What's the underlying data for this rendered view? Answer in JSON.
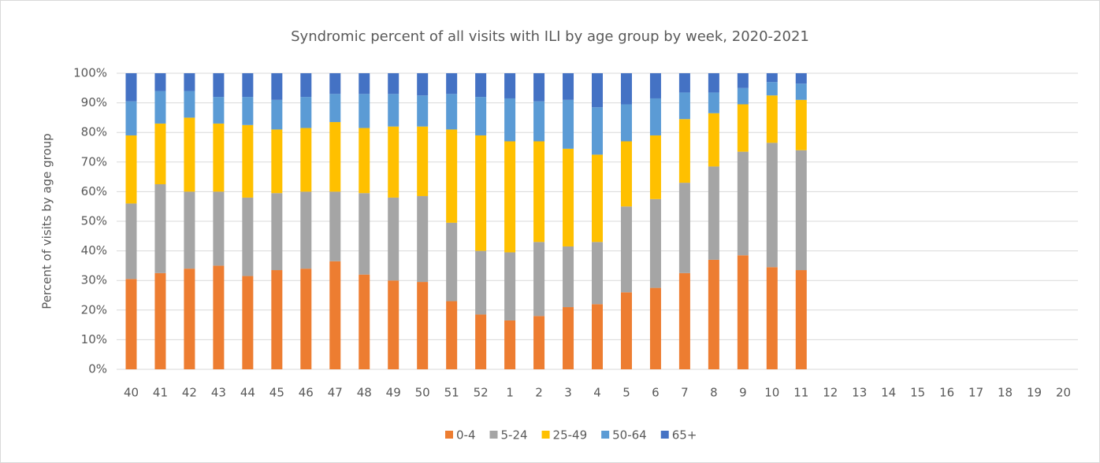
{
  "chart_data": {
    "type": "stacked_bar",
    "title": "Syndromic percent of all visits with ILI by age group by week, 2020-2021",
    "y_label": "Percent of visits by age group",
    "categories": [
      "40",
      "41",
      "42",
      "43",
      "44",
      "45",
      "46",
      "47",
      "48",
      "49",
      "50",
      "51",
      "52",
      "1",
      "2",
      "3",
      "4",
      "5",
      "6",
      "7",
      "8",
      "9",
      "10",
      "11",
      "12",
      "13",
      "14",
      "15",
      "16",
      "17",
      "18",
      "19",
      "20"
    ],
    "series": [
      {
        "name": "0-4",
        "color": "#ed7d31",
        "values": [
          30.5,
          32.5,
          34,
          35,
          31.5,
          33.5,
          34,
          36.5,
          32,
          30,
          29.5,
          23,
          18.5,
          16.5,
          18,
          21,
          22,
          26,
          27.5,
          32.5,
          37,
          38.5,
          34.5,
          33.5,
          null,
          null,
          null,
          null,
          null,
          null,
          null,
          null,
          null
        ]
      },
      {
        "name": "5-24",
        "color": "#a5a5a5",
        "values": [
          25.5,
          30,
          26,
          25,
          26.5,
          26,
          26,
          23.5,
          27.5,
          28,
          29,
          26.5,
          21.5,
          23,
          25,
          20.5,
          21,
          29,
          30,
          30.5,
          31.5,
          35,
          42,
          40.5,
          null,
          null,
          null,
          null,
          null,
          null,
          null,
          null,
          null
        ]
      },
      {
        "name": "25-49",
        "color": "#ffc000",
        "values": [
          23,
          20.5,
          25,
          23,
          24.5,
          21.5,
          21.5,
          23.5,
          22,
          24,
          23.5,
          31.5,
          39,
          37.5,
          34,
          33,
          29.5,
          22,
          21.5,
          21.5,
          18,
          16,
          16,
          17,
          null,
          null,
          null,
          null,
          null,
          null,
          null,
          null,
          null
        ]
      },
      {
        "name": "50-64",
        "color": "#5b9bd5",
        "values": [
          11.5,
          11,
          9,
          9,
          9.5,
          10,
          10.5,
          9.5,
          11.5,
          11,
          10.5,
          12,
          13,
          14.5,
          13.5,
          16.5,
          16,
          12.5,
          12.5,
          9,
          7,
          5.5,
          4.5,
          5.5,
          null,
          null,
          null,
          null,
          null,
          null,
          null,
          null,
          null
        ]
      },
      {
        "name": "65+",
        "color": "#4472c4",
        "values": [
          9.5,
          6,
          6,
          8,
          8,
          9,
          8,
          7,
          7,
          7,
          7.5,
          7,
          8,
          8.5,
          9.5,
          9,
          11.5,
          10.5,
          8.5,
          6.5,
          6.5,
          5,
          3,
          3.5,
          null,
          null,
          null,
          null,
          null,
          null,
          null,
          null,
          null
        ]
      }
    ],
    "ylim": [
      0,
      100
    ],
    "yticks": [
      {
        "value": 0,
        "label": "0%"
      },
      {
        "value": 10,
        "label": "10%"
      },
      {
        "value": 20,
        "label": "20%"
      },
      {
        "value": 30,
        "label": "30%"
      },
      {
        "value": 40,
        "label": "40%"
      },
      {
        "value": 50,
        "label": "50%"
      },
      {
        "value": 60,
        "label": "60%"
      },
      {
        "value": 70,
        "label": "70%"
      },
      {
        "value": 80,
        "label": "80%"
      },
      {
        "value": 90,
        "label": "90%"
      },
      {
        "value": 100,
        "label": "100%"
      }
    ],
    "grid": true,
    "legend": "bottom"
  }
}
